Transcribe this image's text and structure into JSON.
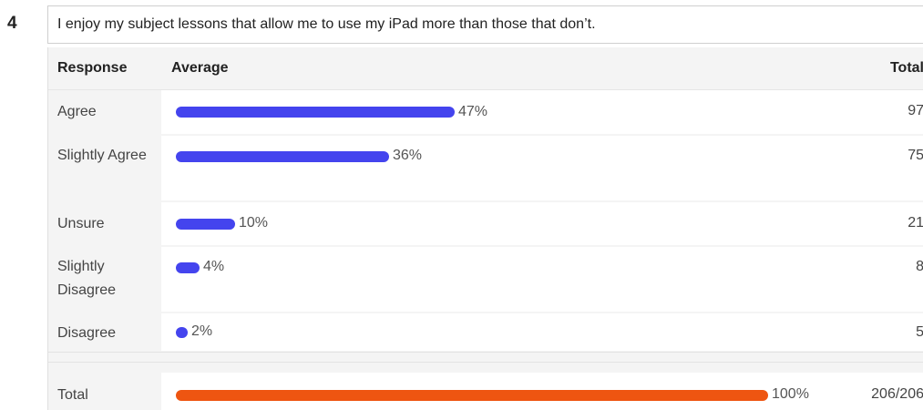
{
  "question": {
    "number": "4",
    "text": "I enjoy my subject lessons that allow me to use my iPad more than those that don’t."
  },
  "table": {
    "headers": {
      "response": "Response",
      "average": "Average",
      "total": "Total"
    }
  },
  "colors": {
    "bar": "#4444ee",
    "total_bar": "#ee5511"
  },
  "chart_data": {
    "type": "bar",
    "orientation": "horizontal",
    "categories": [
      "Agree",
      "Slightly Agree",
      "Unsure",
      "Slightly Disagree",
      "Disagree"
    ],
    "percent_labels": [
      "47%",
      "36%",
      "10%",
      "4%",
      "2%"
    ],
    "values": [
      47,
      36,
      10,
      4,
      2
    ],
    "counts": [
      "97",
      "75",
      "21",
      "8",
      "5"
    ],
    "total": {
      "label": "Total",
      "value": 100,
      "percent_label": "100%",
      "count": "206/206"
    }
  }
}
